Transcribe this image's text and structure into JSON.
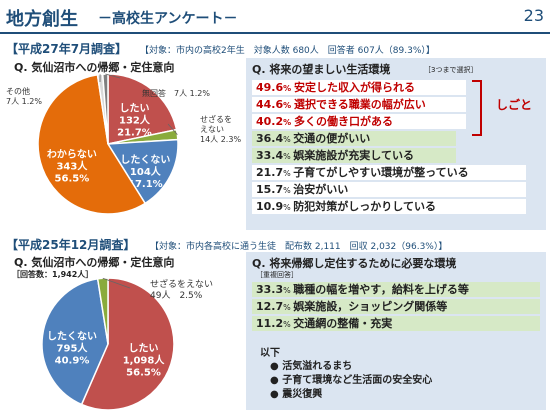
{
  "header": {
    "title": "地方創生",
    "subtitle": "－高校生アンケート－",
    "page": "23"
  },
  "top": {
    "survey_title": "【平成27年7月調査】",
    "survey_meta": "【対象：市内の高校2年生　対象人数 680人　回答者 607人（89.3%）】",
    "left_question": "Q. 気仙沼市への帰郷・定住意向",
    "right_question": "Q. 将来の望ましい生活環境",
    "right_note": "［3つまで選択］",
    "bracket_label": "しごと",
    "rows": [
      {
        "pct": "49.6",
        "text": "安定した収入が得られる"
      },
      {
        "pct": "44.6",
        "text": "選択できる職業の幅が広い"
      },
      {
        "pct": "40.2",
        "text": "多くの働き口がある"
      },
      {
        "pct": "36.4",
        "text": "交通の便がいい"
      },
      {
        "pct": "33.4",
        "text": "娯楽施設が充実している"
      },
      {
        "pct": "21.7",
        "text": "子育てがしやすい環境が整っている"
      },
      {
        "pct": "15.7",
        "text": "治安がいい"
      },
      {
        "pct": "10.9",
        "text": "防犯対策がしっかりしている"
      }
    ]
  },
  "bottom": {
    "survey_title": "【平成25年12月調査】",
    "survey_meta": "【対象：市内各高校に通う生徒　配布数 2,111　回収 2,032（96.3%）】",
    "left_question": "Q. 気仙沼市への帰郷・定住意向",
    "count_note": "［回答数：1,942人］",
    "right_question": "Q. 将来帰郷し定住するために必要な環境",
    "right_note": "［重複回答］",
    "rows": [
      {
        "pct": "33.3",
        "text": "職種の幅を増やす，給料を上げる等"
      },
      {
        "pct": "12.7",
        "text": "娯楽施設，ショッピング関係等"
      },
      {
        "pct": "11.2",
        "text": "交通網の整備・充実"
      }
    ],
    "list_head": "以下",
    "list_items": [
      "● 活気溢れるまち",
      "● 子育て環境など生活面の安全安心",
      "● 震災復興"
    ]
  },
  "chart_data": [
    {
      "type": "pie",
      "title": "Q. 気仙沼市への帰郷・定住意向",
      "slices": [
        {
          "label": "したい",
          "count_text": "132人",
          "pct_text": "21.7%",
          "value": 21.7,
          "color": "#c0504d"
        },
        {
          "label": "せざるをえない",
          "count_text": "14人",
          "pct_text": "2.3%",
          "value": 2.3,
          "color": "#8aab3c"
        },
        {
          "label": "したくない",
          "count_text": "104人",
          "pct_text": "17.1%",
          "value": 17.1,
          "color": "#4f81bd"
        },
        {
          "label": "わからない",
          "count_text": "343人",
          "pct_text": "56.5%",
          "value": 56.5,
          "color": "#e46c0a"
        },
        {
          "label": "その他",
          "count_text": "7人",
          "pct_text": "1.2%",
          "value": 1.2,
          "color": "#d9d9d9"
        },
        {
          "label": "無回答",
          "count_text": "7人",
          "pct_text": "1.2%",
          "value": 1.2,
          "color": "#7f7f7f"
        }
      ]
    },
    {
      "type": "pie",
      "title": "Q. 気仙沼市への帰郷・定住意向",
      "slices": [
        {
          "label": "したい",
          "count_text": "1,098人",
          "pct_text": "56.5%",
          "value": 56.5,
          "color": "#c0504d"
        },
        {
          "label": "したくない",
          "count_text": "795人",
          "pct_text": "40.9%",
          "value": 40.9,
          "color": "#4f81bd"
        },
        {
          "label": "せざるをえない",
          "count_text": "49人",
          "pct_text": "2.5%",
          "value": 2.5,
          "color": "#8aab3c"
        }
      ]
    }
  ]
}
